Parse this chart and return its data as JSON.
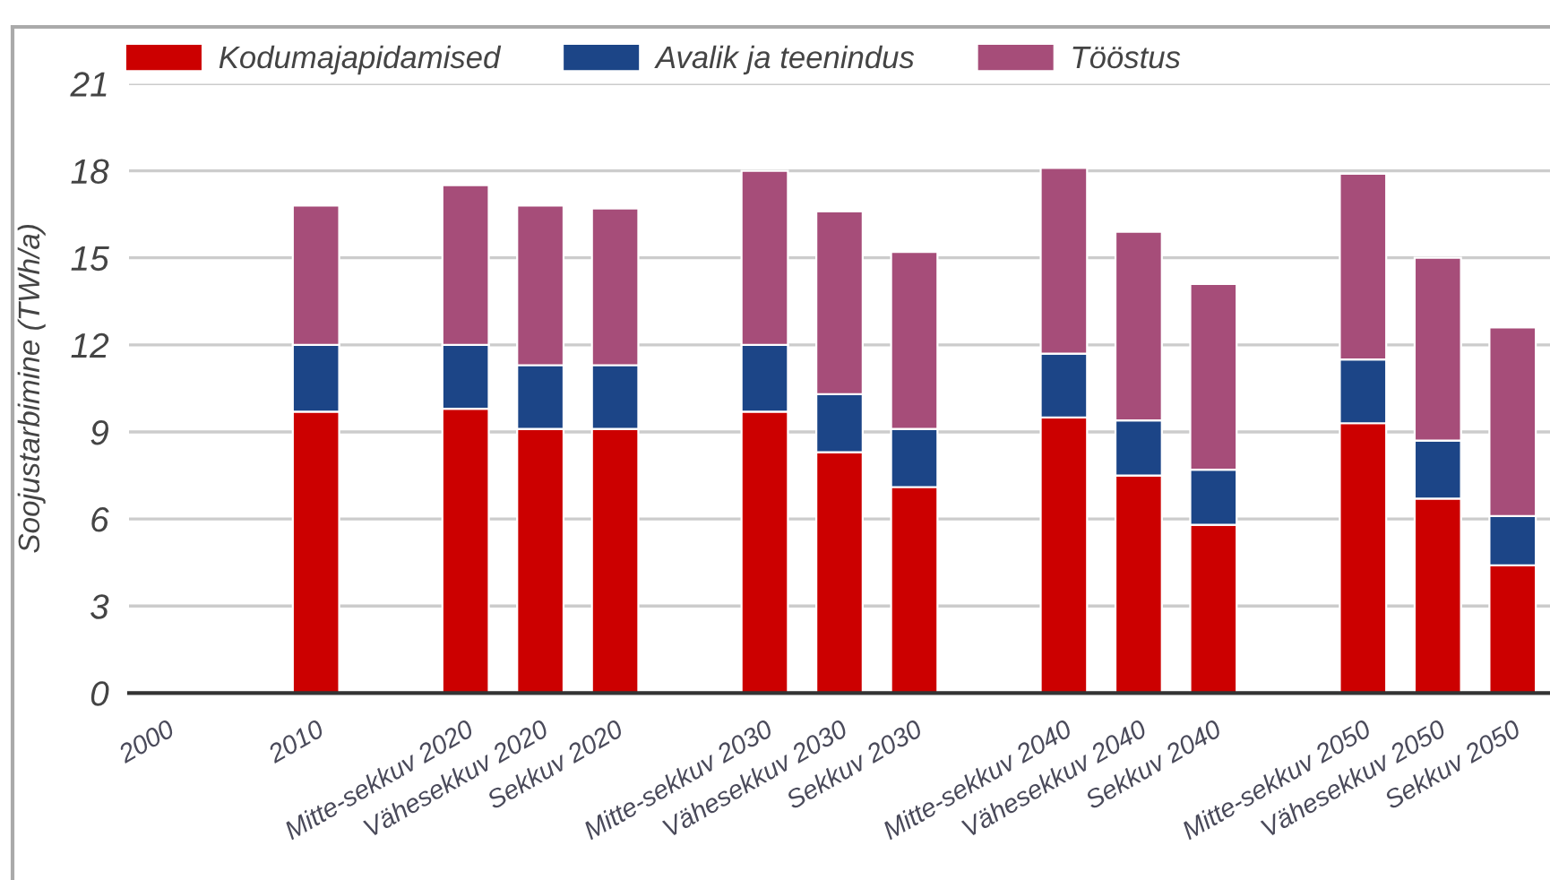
{
  "chart_data": {
    "type": "bar",
    "stacked": true,
    "categories": [
      "2000",
      null,
      "2010",
      null,
      "Mitte-sekkuv 2020",
      "Vähesekkuv 2020",
      "Sekkuv 2020",
      null,
      "Mitte-sekkuv 2030",
      "Vähesekkuv 2030",
      "Sekkuv 2030",
      null,
      "Mitte-sekkuv 2040",
      "Vähesekkuv 2040",
      "Sekkuv 2040",
      null,
      "Mitte-sekkuv 2050",
      "Vähesekkuv 2050",
      "Sekkuv 2050"
    ],
    "ylabel": "Soojustarbimine (TWh/a)",
    "ylim": [
      0,
      21
    ],
    "yticks": [
      0,
      3,
      6,
      9,
      12,
      15,
      18,
      21
    ],
    "grid": "y",
    "legend": "top",
    "series": [
      {
        "name": "Kodumajapidamised",
        "color": "#cc0000",
        "values": [
          null,
          null,
          9.7,
          null,
          9.8,
          9.1,
          9.1,
          null,
          9.7,
          8.3,
          7.1,
          null,
          9.5,
          7.5,
          5.8,
          null,
          9.3,
          6.7,
          4.4
        ]
      },
      {
        "name": "Avalik ja teenindus",
        "color": "#1c4587",
        "values": [
          null,
          null,
          2.3,
          null,
          2.2,
          2.2,
          2.2,
          null,
          2.3,
          2.0,
          2.0,
          null,
          2.2,
          1.9,
          1.9,
          null,
          2.2,
          2.0,
          1.7
        ]
      },
      {
        "name": "Tööstus",
        "color": "#a64d79",
        "values": [
          null,
          null,
          4.8,
          null,
          5.5,
          5.5,
          5.4,
          null,
          6.0,
          6.3,
          6.1,
          null,
          6.4,
          6.5,
          6.4,
          null,
          6.4,
          6.3,
          6.5
        ]
      }
    ]
  }
}
